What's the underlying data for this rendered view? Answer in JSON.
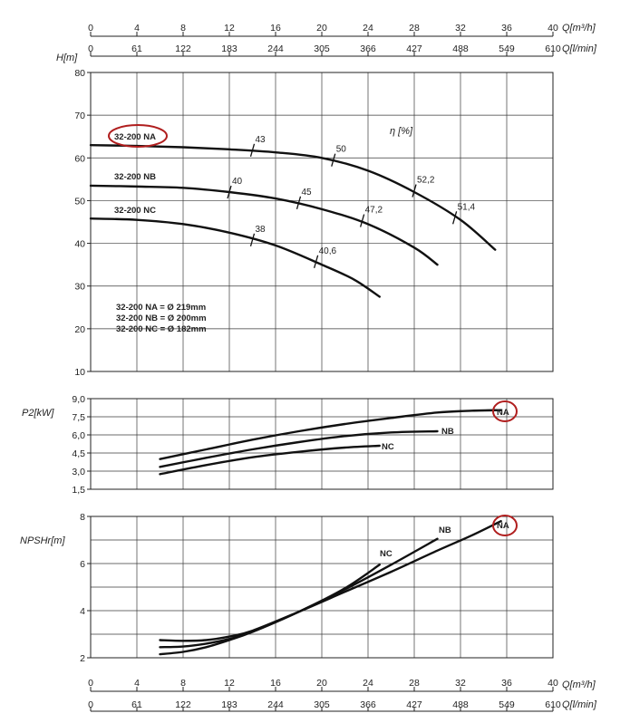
{
  "chart_data": {
    "type": "line",
    "x_axis_q_m3h": {
      "label": "Q[m³/h]",
      "ticks": [
        0,
        4,
        8,
        12,
        16,
        20,
        24,
        28,
        32,
        36,
        40
      ]
    },
    "x_axis_q_lmin": {
      "label": "Q[l/min]",
      "ticks": [
        "0",
        "61",
        "122",
        "183",
        "244",
        "305",
        "366",
        "427",
        "488",
        "549",
        "610"
      ]
    },
    "xlim": [
      0,
      40
    ],
    "head": {
      "ylabel": "H[m]",
      "ylim": [
        10,
        80
      ],
      "yticks": [
        "10",
        "20",
        "30",
        "40",
        "50",
        "60",
        "70",
        "80"
      ],
      "efficiency_label": "η [%]",
      "legend": [
        "32-200 NA = Ø 219mm",
        "32-200 NB = Ø 200mm",
        "32-200 NC = Ø 182mm"
      ],
      "series": [
        {
          "name": "32-200 NA",
          "highlight": true,
          "x": [
            0,
            4,
            8,
            12,
            16,
            20,
            24,
            28,
            32,
            35
          ],
          "y": [
            63,
            62.8,
            62.5,
            62.0,
            61.3,
            60.0,
            57.0,
            52.0,
            45.5,
            38.5
          ]
        },
        {
          "name": "32-200 NB",
          "x": [
            0,
            4,
            8,
            12,
            16,
            20,
            24,
            28,
            30
          ],
          "y": [
            53.5,
            53.3,
            53.0,
            52.0,
            50.5,
            48.0,
            44.5,
            39.0,
            35.0
          ]
        },
        {
          "name": "32-200 NC",
          "x": [
            0,
            4,
            8,
            12,
            16,
            20,
            22.8,
            25
          ],
          "y": [
            45.8,
            45.5,
            44.5,
            42.5,
            39.5,
            35.0,
            31.5,
            27.5
          ]
        }
      ],
      "efficiency_marks": [
        {
          "label": "43",
          "x": 14,
          "y": 61.8
        },
        {
          "label": "50",
          "x": 21,
          "y": 59.5
        },
        {
          "label": "52,2",
          "x": 28,
          "y": 52.3
        },
        {
          "label": "51,4",
          "x": 31.5,
          "y": 46.0
        },
        {
          "label": "40",
          "x": 12,
          "y": 52.0
        },
        {
          "label": "45",
          "x": 18,
          "y": 49.5
        },
        {
          "label": "47,2",
          "x": 23.5,
          "y": 45.3
        },
        {
          "label": "38",
          "x": 14,
          "y": 40.8
        },
        {
          "label": "40,6",
          "x": 19.5,
          "y": 35.7
        }
      ]
    },
    "power": {
      "ylabel": "P2[kW]",
      "ylim": [
        1.5,
        9.0
      ],
      "yticks": [
        "1,5",
        "3,0",
        "4,5",
        "6,0",
        "7,5",
        "9,0"
      ],
      "series": [
        {
          "name": "NA",
          "highlight": true,
          "x": [
            6,
            10,
            14,
            18,
            22,
            26,
            30,
            33,
            35.5
          ],
          "y": [
            4.0,
            4.8,
            5.6,
            6.3,
            6.9,
            7.4,
            7.85,
            8.0,
            8.05
          ]
        },
        {
          "name": "NB",
          "x": [
            6,
            10,
            14,
            18,
            22,
            26,
            30
          ],
          "y": [
            3.35,
            4.1,
            4.8,
            5.4,
            5.9,
            6.2,
            6.3
          ]
        },
        {
          "name": "NC",
          "x": [
            6,
            10,
            14,
            18,
            22,
            25
          ],
          "y": [
            2.75,
            3.5,
            4.15,
            4.6,
            4.95,
            5.1
          ]
        }
      ]
    },
    "npsh": {
      "ylabel": "NPSHr[m]",
      "ylim": [
        2,
        8
      ],
      "yticks": [
        "2",
        "4",
        "6",
        "8"
      ],
      "series": [
        {
          "name": "NA",
          "highlight": true,
          "x": [
            6,
            8,
            10,
            12,
            14,
            18,
            22,
            26,
            30,
            33,
            35.5
          ],
          "y": [
            2.75,
            2.72,
            2.75,
            2.9,
            3.15,
            3.95,
            4.8,
            5.65,
            6.55,
            7.2,
            7.8
          ]
        },
        {
          "name": "NB",
          "x": [
            6,
            8,
            10,
            12,
            14,
            18,
            22,
            26,
            30
          ],
          "y": [
            2.45,
            2.48,
            2.6,
            2.8,
            3.1,
            3.95,
            4.9,
            5.95,
            7.05
          ]
        },
        {
          "name": "NC",
          "x": [
            6,
            8,
            10,
            12,
            14,
            18,
            22,
            25
          ],
          "y": [
            2.15,
            2.25,
            2.45,
            2.75,
            3.1,
            3.95,
            4.95,
            5.95
          ]
        }
      ]
    }
  }
}
